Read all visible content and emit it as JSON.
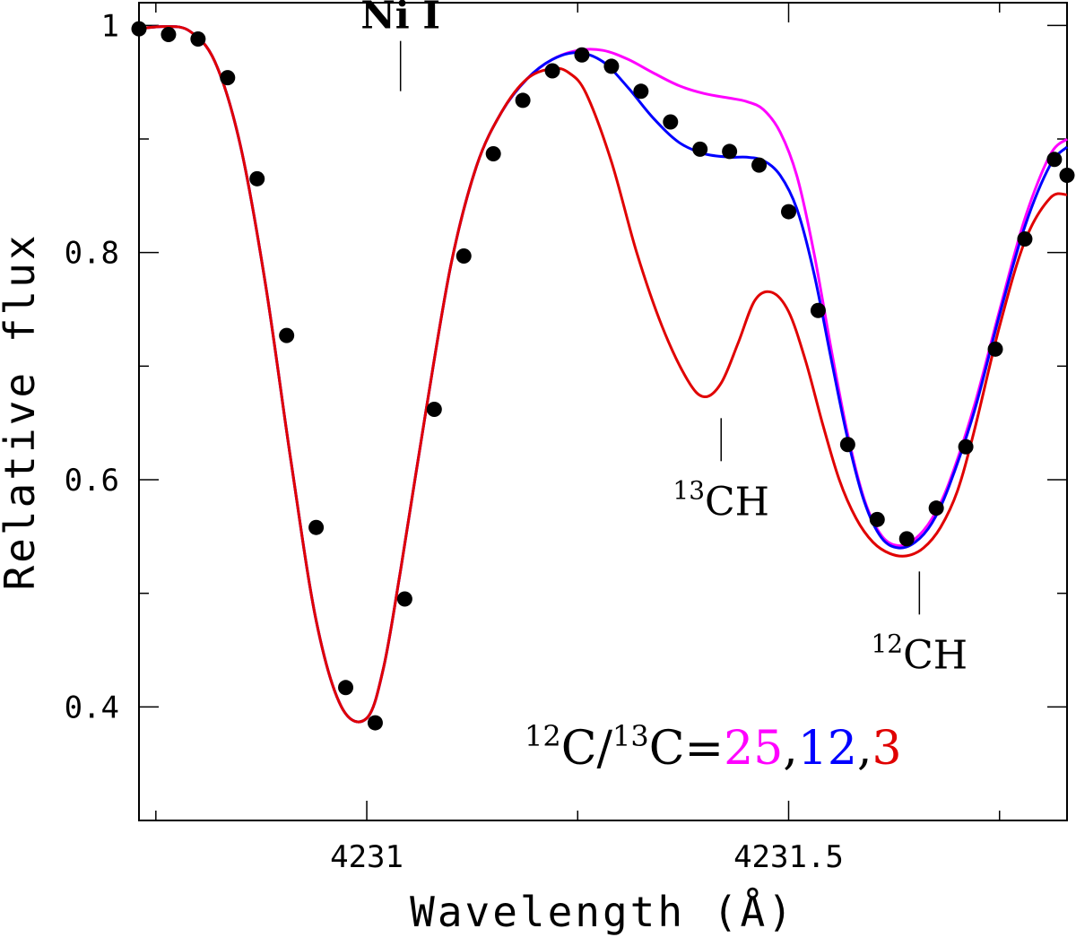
{
  "chart_data": {
    "type": "line",
    "title": "",
    "xlabel": "Wavelength (Å)",
    "ylabel": "Relative flux",
    "xlim": [
      4230.73,
      4231.83
    ],
    "ylim": [
      0.3,
      1.02
    ],
    "x_ticks": [
      {
        "value": 4231.0,
        "label": "4231"
      },
      {
        "value": 4231.5,
        "label": "4231.5"
      }
    ],
    "y_ticks": [
      {
        "value": 0.4,
        "label": "0.4"
      },
      {
        "value": 0.6,
        "label": "0.6"
      },
      {
        "value": 0.8,
        "label": "0.8"
      },
      {
        "value": 1.0,
        "label": "1"
      }
    ],
    "x_minor_step": 0.25,
    "y_minor_step": 0.1,
    "grid": false,
    "observed": {
      "color": "#000000",
      "x": [
        4230.73,
        4230.765,
        4230.8,
        4230.835,
        4230.87,
        4230.905,
        4230.94,
        4230.975,
        4231.01,
        4231.045,
        4231.08,
        4231.115,
        4231.15,
        4231.185,
        4231.22,
        4231.255,
        4231.29,
        4231.325,
        4231.36,
        4231.395,
        4231.43,
        4231.465,
        4231.5,
        4231.535,
        4231.57,
        4231.605,
        4231.64,
        4231.675,
        4231.71,
        4231.745,
        4231.78,
        4231.815,
        4231.83
      ],
      "y": [
        0.997,
        0.992,
        0.988,
        0.954,
        0.865,
        0.727,
        0.558,
        0.417,
        0.386,
        0.495,
        0.662,
        0.797,
        0.887,
        0.934,
        0.96,
        0.974,
        0.964,
        0.942,
        0.915,
        0.891,
        0.889,
        0.877,
        0.836,
        0.749,
        0.631,
        0.565,
        0.548,
        0.575,
        0.629,
        0.715,
        0.812,
        0.882,
        0.868
      ]
    },
    "series": [
      {
        "name": "25",
        "color": "#ff00ff",
        "x": [
          4230.73,
          4230.76,
          4230.79,
          4230.82,
          4230.85,
          4230.88,
          4230.91,
          4230.94,
          4230.97,
          4231.0,
          4231.02,
          4231.04,
          4231.07,
          4231.1,
          4231.13,
          4231.16,
          4231.19,
          4231.22,
          4231.25,
          4231.28,
          4231.31,
          4231.34,
          4231.37,
          4231.4,
          4231.43,
          4231.45,
          4231.47,
          4231.49,
          4231.51,
          4231.53,
          4231.55,
          4231.57,
          4231.59,
          4231.61,
          4231.63,
          4231.65,
          4231.67,
          4231.69,
          4231.72,
          4231.75,
          4231.78,
          4231.81,
          4231.83
        ],
        "y": [
          0.997,
          0.999,
          0.995,
          0.968,
          0.895,
          0.772,
          0.617,
          0.476,
          0.4,
          0.39,
          0.435,
          0.52,
          0.66,
          0.79,
          0.876,
          0.924,
          0.953,
          0.97,
          0.978,
          0.978,
          0.97,
          0.958,
          0.947,
          0.94,
          0.936,
          0.933,
          0.926,
          0.906,
          0.867,
          0.8,
          0.717,
          0.64,
          0.582,
          0.551,
          0.542,
          0.548,
          0.566,
          0.597,
          0.665,
          0.749,
          0.83,
          0.886,
          0.9
        ]
      },
      {
        "name": "12",
        "color": "#0000ff",
        "x": [
          4230.73,
          4230.76,
          4230.79,
          4230.82,
          4230.85,
          4230.88,
          4230.91,
          4230.94,
          4230.97,
          4231.0,
          4231.02,
          4231.04,
          4231.07,
          4231.1,
          4231.13,
          4231.16,
          4231.19,
          4231.22,
          4231.25,
          4231.28,
          4231.31,
          4231.34,
          4231.37,
          4231.4,
          4231.43,
          4231.45,
          4231.47,
          4231.49,
          4231.51,
          4231.53,
          4231.55,
          4231.57,
          4231.59,
          4231.61,
          4231.63,
          4231.65,
          4231.67,
          4231.69,
          4231.72,
          4231.75,
          4231.78,
          4231.81,
          4231.83
        ],
        "y": [
          0.997,
          0.999,
          0.995,
          0.968,
          0.895,
          0.772,
          0.617,
          0.476,
          0.4,
          0.39,
          0.435,
          0.52,
          0.66,
          0.79,
          0.876,
          0.924,
          0.953,
          0.97,
          0.976,
          0.968,
          0.945,
          0.918,
          0.897,
          0.887,
          0.884,
          0.884,
          0.881,
          0.868,
          0.838,
          0.782,
          0.708,
          0.636,
          0.58,
          0.549,
          0.54,
          0.545,
          0.562,
          0.594,
          0.66,
          0.745,
          0.823,
          0.877,
          0.893
        ]
      },
      {
        "name": "3",
        "color": "#e00000",
        "x": [
          4230.73,
          4230.76,
          4230.79,
          4230.82,
          4230.85,
          4230.88,
          4230.91,
          4230.94,
          4230.97,
          4231.0,
          4231.02,
          4231.04,
          4231.07,
          4231.1,
          4231.13,
          4231.16,
          4231.19,
          4231.22,
          4231.24,
          4231.26,
          4231.29,
          4231.32,
          4231.35,
          4231.38,
          4231.4,
          4231.42,
          4231.44,
          4231.46,
          4231.48,
          4231.5,
          4231.52,
          4231.54,
          4231.56,
          4231.58,
          4231.6,
          4231.62,
          4231.64,
          4231.66,
          4231.68,
          4231.7,
          4231.72,
          4231.75,
          4231.78,
          4231.81,
          4231.83
        ],
        "y": [
          0.997,
          0.999,
          0.995,
          0.968,
          0.895,
          0.772,
          0.617,
          0.476,
          0.4,
          0.39,
          0.435,
          0.52,
          0.66,
          0.79,
          0.876,
          0.924,
          0.953,
          0.962,
          0.958,
          0.94,
          0.88,
          0.8,
          0.735,
          0.688,
          0.673,
          0.685,
          0.72,
          0.758,
          0.765,
          0.748,
          0.705,
          0.65,
          0.6,
          0.566,
          0.545,
          0.535,
          0.533,
          0.54,
          0.558,
          0.59,
          0.643,
          0.735,
          0.81,
          0.848,
          0.851
        ]
      }
    ],
    "annotations": [
      {
        "id": "ni",
        "text": "Ni I",
        "x": 4231.04,
        "y": 0.95
      },
      {
        "id": "c13",
        "sup": "13",
        "text": "CH",
        "x": 4231.42,
        "y": 0.67
      },
      {
        "id": "c12",
        "sup": "12",
        "text": "CH",
        "x": 4231.655,
        "y": 0.535
      }
    ],
    "ratio_label": {
      "sup1": "12",
      "text1": "C/",
      "sup2": "13",
      "text2": "C=",
      "values": [
        {
          "text": "25",
          "color": "#ff00ff"
        },
        {
          "text": "12",
          "color": "#0000ff"
        },
        {
          "text": "3",
          "color": "#e00000"
        }
      ],
      "separator": ","
    }
  }
}
